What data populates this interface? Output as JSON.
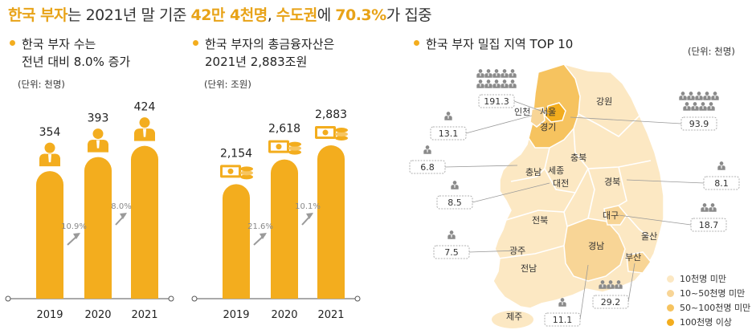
{
  "header": {
    "title_parts": [
      "한국 부자",
      "는 2021년 말 기준 ",
      "42만 4천명",
      ", ",
      "수도권",
      "에 ",
      "70.3%",
      "가 집중"
    ]
  },
  "colors": {
    "accent": "#f3ad1e",
    "accent_dark": "#e8a318",
    "map_light": "#fce8c3",
    "map_mid": "#f8d596",
    "map_high": "#f6c35f",
    "map_top": "#f3ad1e",
    "gray": "#9a9a9a"
  },
  "chart_data": [
    {
      "type": "bar",
      "title_lines": [
        "한국 부자 수는",
        "전년 대비 8.0% 증가"
      ],
      "unit": "(단위: 천명)",
      "categories": [
        "2019",
        "2020",
        "2021"
      ],
      "values": [
        354,
        393,
        424
      ],
      "value_labels": [
        "354",
        "393",
        "424"
      ],
      "growth_labels": [
        "10.9%",
        "8.0%"
      ],
      "icon": "person-icon"
    },
    {
      "type": "bar",
      "title_lines": [
        "한국 부자의 총금융자산은",
        "2021년 2,883조원"
      ],
      "unit": "(단위: 조원)",
      "categories": [
        "2019",
        "2020",
        "2021"
      ],
      "values": [
        2154,
        2618,
        2883
      ],
      "value_labels": [
        "2,154",
        "2,618",
        "2,883"
      ],
      "growth_labels": [
        "21.6%",
        "10.1%"
      ],
      "icon": "money-icon"
    }
  ],
  "map": {
    "title": "한국 부자 밀집 지역 TOP 10",
    "unit": "(단위: 천명)",
    "region_names": [
      "인천",
      "서울",
      "강원",
      "경기",
      "충북",
      "충남",
      "세종",
      "대전",
      "경북",
      "전북",
      "대구",
      "울산",
      "경남",
      "부산",
      "광주",
      "전남",
      "제주"
    ],
    "top10": [
      {
        "region": "서울",
        "value": "191.3"
      },
      {
        "region": "경기",
        "value": "93.9"
      },
      {
        "region": "부산",
        "value": "29.2"
      },
      {
        "region": "대구",
        "value": "18.7"
      },
      {
        "region": "인천",
        "value": "13.1"
      },
      {
        "region": "경남",
        "value": "11.1"
      },
      {
        "region": "충남",
        "value": "6.8"
      },
      {
        "region": "대전",
        "value": "8.5"
      },
      {
        "region": "경북",
        "value": "8.1"
      },
      {
        "region": "광주",
        "value": "7.5"
      }
    ],
    "legend": [
      "10천명 미만",
      "10~50천명 미만",
      "50~100천명 미만",
      "100천명 이상"
    ]
  }
}
